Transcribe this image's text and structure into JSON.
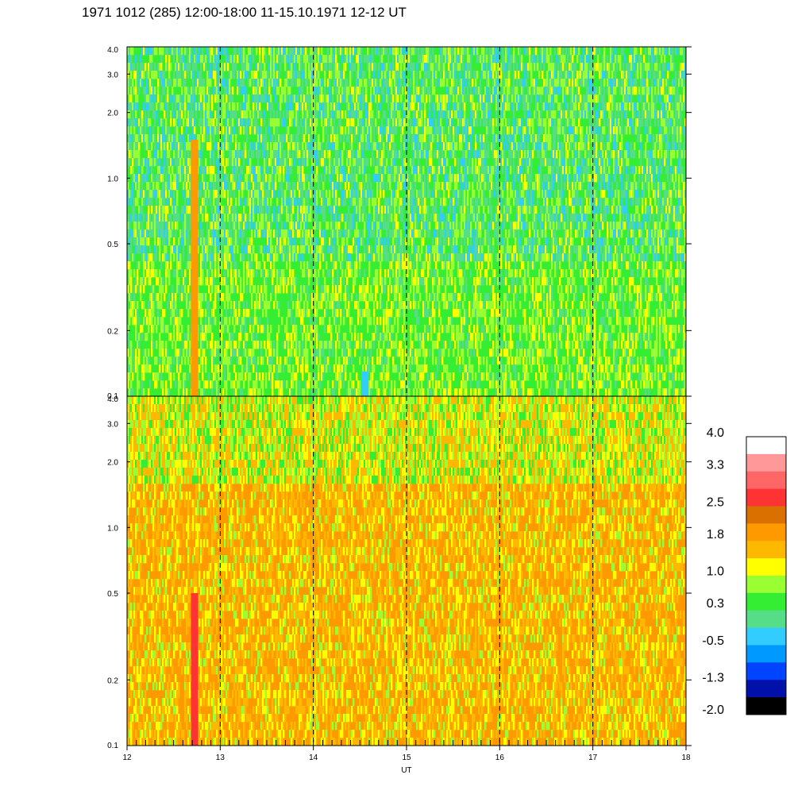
{
  "title": "1971 1012 (285) 12:00-18:00 11-15.10.1971  12-12 UT",
  "chart_data": {
    "type": "heatmap",
    "title": "1971 1012 (285) 12:00-18:00 11-15.10.1971  12-12 UT",
    "xlabel": "UT",
    "x_range": [
      12,
      18
    ],
    "x_ticks": [
      "12",
      "13",
      "14",
      "15",
      "16",
      "17",
      "18"
    ],
    "x_tick_values": [
      12,
      13,
      14,
      15,
      16,
      17,
      18
    ],
    "x_dashed_gridlines": [
      13,
      14,
      15,
      16,
      17
    ],
    "y_scale": "log",
    "y_range": [
      0.1,
      4.0
    ],
    "y_ticks": [
      "4.0",
      "3.0",
      "2.0",
      "1.0",
      "0.5",
      "0.2",
      "0.1"
    ],
    "y_tick_values": [
      4.0,
      3.0,
      2.0,
      1.0,
      0.5,
      0.2,
      0.1
    ],
    "colorbar": {
      "labels": [
        "4.0",
        "3.3",
        "2.5",
        "1.8",
        "1.0",
        "0.3",
        "-0.5",
        "-1.3",
        "-2.0"
      ],
      "label_values": [
        4.0,
        3.3,
        2.5,
        1.8,
        1.0,
        0.3,
        -0.5,
        -1.3,
        -2.0
      ],
      "colors_top_to_bottom": [
        "#ffffff",
        "#ff9999",
        "#ff6666",
        "#ff3333",
        "#d97000",
        "#ff9900",
        "#ffb800",
        "#ffff00",
        "#99ff33",
        "#33ee33",
        "#55dd88",
        "#33ccff",
        "#0099ff",
        "#0044ff",
        "#0011aa",
        "#000000"
      ]
    },
    "panels": [
      {
        "name": "upper",
        "dominant_colors": [
          "#33ee33",
          "#55dd88",
          "#99ff33",
          "#ffff00",
          "#33ccff"
        ],
        "vertical_streaks": [
          {
            "x": 12.72,
            "y_from": 0.1,
            "y_to": 1.5,
            "color": "#ff9900"
          },
          {
            "x": 14.55,
            "y_from": 0.1,
            "y_to": 0.13,
            "color": "#33ccff"
          }
        ]
      },
      {
        "name": "lower",
        "dominant_colors": [
          "#ff9900",
          "#ffb800",
          "#ffff00",
          "#99ff33",
          "#33ee33"
        ],
        "vertical_streaks": [
          {
            "x": 12.72,
            "y_from": 0.1,
            "y_to": 0.5,
            "color": "#ff3333"
          }
        ]
      }
    ]
  }
}
